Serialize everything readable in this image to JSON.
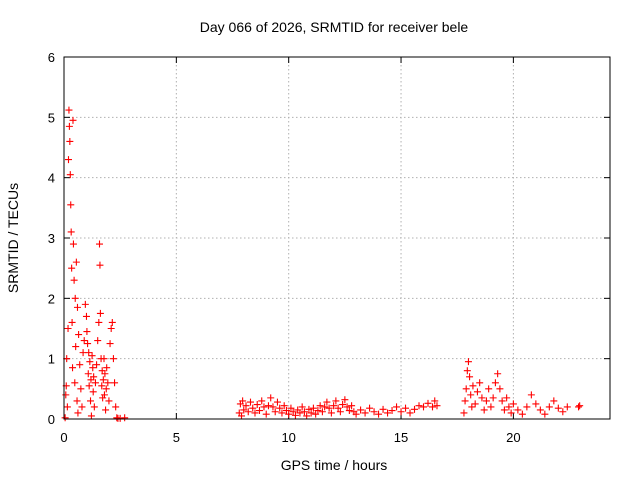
{
  "chart_data": {
    "type": "scatter",
    "title": "Day 066 of 2026, SRMTID for receiver bele",
    "xlabel": "GPS time / hours",
    "ylabel": "SRMTID / TECUs",
    "xlim": [
      0,
      24.3
    ],
    "ylim": [
      0,
      6
    ],
    "xticks": [
      0,
      5,
      10,
      15,
      20
    ],
    "yticks": [
      0,
      1,
      2,
      3,
      4,
      5,
      6
    ],
    "grid": true,
    "marker": "plus",
    "color": "#ff0000",
    "series": [
      {
        "name": "SRMTID",
        "points": [
          [
            0.05,
            0.02
          ],
          [
            0.08,
            0.4
          ],
          [
            0.1,
            0.55
          ],
          [
            0.12,
            1.0
          ],
          [
            0.15,
            0.2
          ],
          [
            0.18,
            1.5
          ],
          [
            0.2,
            4.3
          ],
          [
            0.22,
            5.12
          ],
          [
            0.24,
            4.85
          ],
          [
            0.26,
            4.6
          ],
          [
            0.28,
            4.05
          ],
          [
            0.3,
            3.55
          ],
          [
            0.32,
            3.1
          ],
          [
            0.34,
            2.5
          ],
          [
            0.36,
            1.6
          ],
          [
            0.38,
            0.85
          ],
          [
            0.4,
            4.95
          ],
          [
            0.42,
            2.9
          ],
          [
            0.45,
            2.3
          ],
          [
            0.48,
            0.6
          ],
          [
            0.5,
            2.0
          ],
          [
            0.52,
            1.2
          ],
          [
            0.55,
            2.6
          ],
          [
            0.58,
            0.3
          ],
          [
            0.6,
            1.85
          ],
          [
            0.62,
            0.1
          ],
          [
            0.65,
            1.4
          ],
          [
            0.7,
            0.9
          ],
          [
            0.75,
            0.5
          ],
          [
            0.8,
            0.2
          ],
          [
            0.85,
            1.1
          ],
          [
            0.9,
            1.3
          ],
          [
            0.95,
            1.9
          ],
          [
            1.0,
            1.7
          ],
          [
            1.02,
            1.45
          ],
          [
            1.05,
            1.25
          ],
          [
            1.08,
            0.75
          ],
          [
            1.1,
            1.1
          ],
          [
            1.12,
            0.55
          ],
          [
            1.15,
            0.95
          ],
          [
            1.18,
            0.3
          ],
          [
            1.2,
            0.65
          ],
          [
            1.22,
            0.05
          ],
          [
            1.25,
            1.05
          ],
          [
            1.28,
            0.85
          ],
          [
            1.3,
            0.45
          ],
          [
            1.32,
            0.7
          ],
          [
            1.35,
            0.2
          ],
          [
            1.4,
            0.6
          ],
          [
            1.45,
            0.9
          ],
          [
            1.5,
            1.3
          ],
          [
            1.55,
            1.6
          ],
          [
            1.58,
            2.9
          ],
          [
            1.6,
            2.55
          ],
          [
            1.62,
            1.75
          ],
          [
            1.65,
            1.0
          ],
          [
            1.68,
            0.55
          ],
          [
            1.7,
            0.8
          ],
          [
            1.72,
            0.35
          ],
          [
            1.75,
            0.65
          ],
          [
            1.78,
            1.0
          ],
          [
            1.8,
            0.4
          ],
          [
            1.82,
            0.75
          ],
          [
            1.85,
            0.15
          ],
          [
            1.88,
            0.5
          ],
          [
            1.9,
            0.85
          ],
          [
            1.95,
            0.6
          ],
          [
            2.0,
            0.3
          ],
          [
            2.05,
            1.25
          ],
          [
            2.1,
            1.5
          ],
          [
            2.15,
            1.6
          ],
          [
            2.2,
            1.0
          ],
          [
            2.25,
            0.6
          ],
          [
            2.3,
            0.2
          ],
          [
            2.35,
            0.02
          ],
          [
            2.4,
            0.01
          ],
          [
            2.5,
            0.01
          ],
          [
            2.7,
            0.02
          ],
          [
            7.8,
            0.1
          ],
          [
            7.85,
            0.25
          ],
          [
            7.9,
            0.05
          ],
          [
            7.95,
            0.3
          ],
          [
            8.0,
            0.15
          ],
          [
            8.1,
            0.22
          ],
          [
            8.2,
            0.12
          ],
          [
            8.3,
            0.28
          ],
          [
            8.4,
            0.18
          ],
          [
            8.5,
            0.1
          ],
          [
            8.6,
            0.24
          ],
          [
            8.7,
            0.14
          ],
          [
            8.8,
            0.3
          ],
          [
            8.9,
            0.2
          ],
          [
            9.0,
            0.08
          ],
          [
            9.1,
            0.22
          ],
          [
            9.2,
            0.35
          ],
          [
            9.3,
            0.2
          ],
          [
            9.4,
            0.12
          ],
          [
            9.5,
            0.28
          ],
          [
            9.6,
            0.18
          ],
          [
            9.7,
            0.1
          ],
          [
            9.8,
            0.22
          ],
          [
            9.9,
            0.14
          ],
          [
            10.0,
            0.08
          ],
          [
            10.1,
            0.18
          ],
          [
            10.2,
            0.12
          ],
          [
            10.3,
            0.06
          ],
          [
            10.4,
            0.15
          ],
          [
            10.5,
            0.1
          ],
          [
            10.6,
            0.2
          ],
          [
            10.7,
            0.12
          ],
          [
            10.8,
            0.05
          ],
          [
            10.9,
            0.16
          ],
          [
            11.0,
            0.1
          ],
          [
            11.1,
            0.18
          ],
          [
            11.2,
            0.08
          ],
          [
            11.3,
            0.14
          ],
          [
            11.4,
            0.22
          ],
          [
            11.5,
            0.12
          ],
          [
            11.6,
            0.2
          ],
          [
            11.7,
            0.28
          ],
          [
            11.8,
            0.18
          ],
          [
            11.9,
            0.1
          ],
          [
            12.0,
            0.22
          ],
          [
            12.1,
            0.3
          ],
          [
            12.2,
            0.18
          ],
          [
            12.3,
            0.12
          ],
          [
            12.4,
            0.24
          ],
          [
            12.5,
            0.32
          ],
          [
            12.6,
            0.2
          ],
          [
            12.7,
            0.14
          ],
          [
            12.8,
            0.22
          ],
          [
            12.9,
            0.12
          ],
          [
            13.0,
            0.08
          ],
          [
            13.2,
            0.15
          ],
          [
            13.4,
            0.1
          ],
          [
            13.6,
            0.18
          ],
          [
            13.8,
            0.12
          ],
          [
            14.0,
            0.08
          ],
          [
            14.2,
            0.16
          ],
          [
            14.4,
            0.1
          ],
          [
            14.6,
            0.14
          ],
          [
            14.8,
            0.2
          ],
          [
            15.0,
            0.12
          ],
          [
            15.2,
            0.18
          ],
          [
            15.4,
            0.1
          ],
          [
            15.6,
            0.16
          ],
          [
            15.8,
            0.22
          ],
          [
            16.0,
            0.2
          ],
          [
            16.2,
            0.26
          ],
          [
            16.4,
            0.2
          ],
          [
            16.5,
            0.3
          ],
          [
            16.6,
            0.22
          ],
          [
            17.8,
            0.1
          ],
          [
            17.85,
            0.3
          ],
          [
            17.9,
            0.5
          ],
          [
            17.95,
            0.8
          ],
          [
            18.0,
            0.95
          ],
          [
            18.05,
            0.7
          ],
          [
            18.1,
            0.4
          ],
          [
            18.15,
            0.2
          ],
          [
            18.2,
            0.55
          ],
          [
            18.3,
            0.25
          ],
          [
            18.4,
            0.45
          ],
          [
            18.5,
            0.6
          ],
          [
            18.6,
            0.35
          ],
          [
            18.7,
            0.15
          ],
          [
            18.8,
            0.3
          ],
          [
            18.9,
            0.5
          ],
          [
            19.0,
            0.2
          ],
          [
            19.1,
            0.35
          ],
          [
            19.2,
            0.6
          ],
          [
            19.3,
            0.75
          ],
          [
            19.4,
            0.5
          ],
          [
            19.5,
            0.3
          ],
          [
            19.6,
            0.15
          ],
          [
            19.7,
            0.35
          ],
          [
            19.8,
            0.2
          ],
          [
            19.9,
            0.1
          ],
          [
            20.0,
            0.25
          ],
          [
            20.2,
            0.15
          ],
          [
            20.4,
            0.08
          ],
          [
            20.6,
            0.2
          ],
          [
            20.8,
            0.4
          ],
          [
            21.0,
            0.25
          ],
          [
            21.2,
            0.15
          ],
          [
            21.4,
            0.08
          ],
          [
            21.6,
            0.2
          ],
          [
            21.8,
            0.3
          ],
          [
            22.0,
            0.18
          ],
          [
            22.2,
            0.12
          ],
          [
            22.4,
            0.2
          ],
          [
            22.9,
            0.2
          ],
          [
            22.95,
            0.22
          ]
        ]
      }
    ]
  }
}
